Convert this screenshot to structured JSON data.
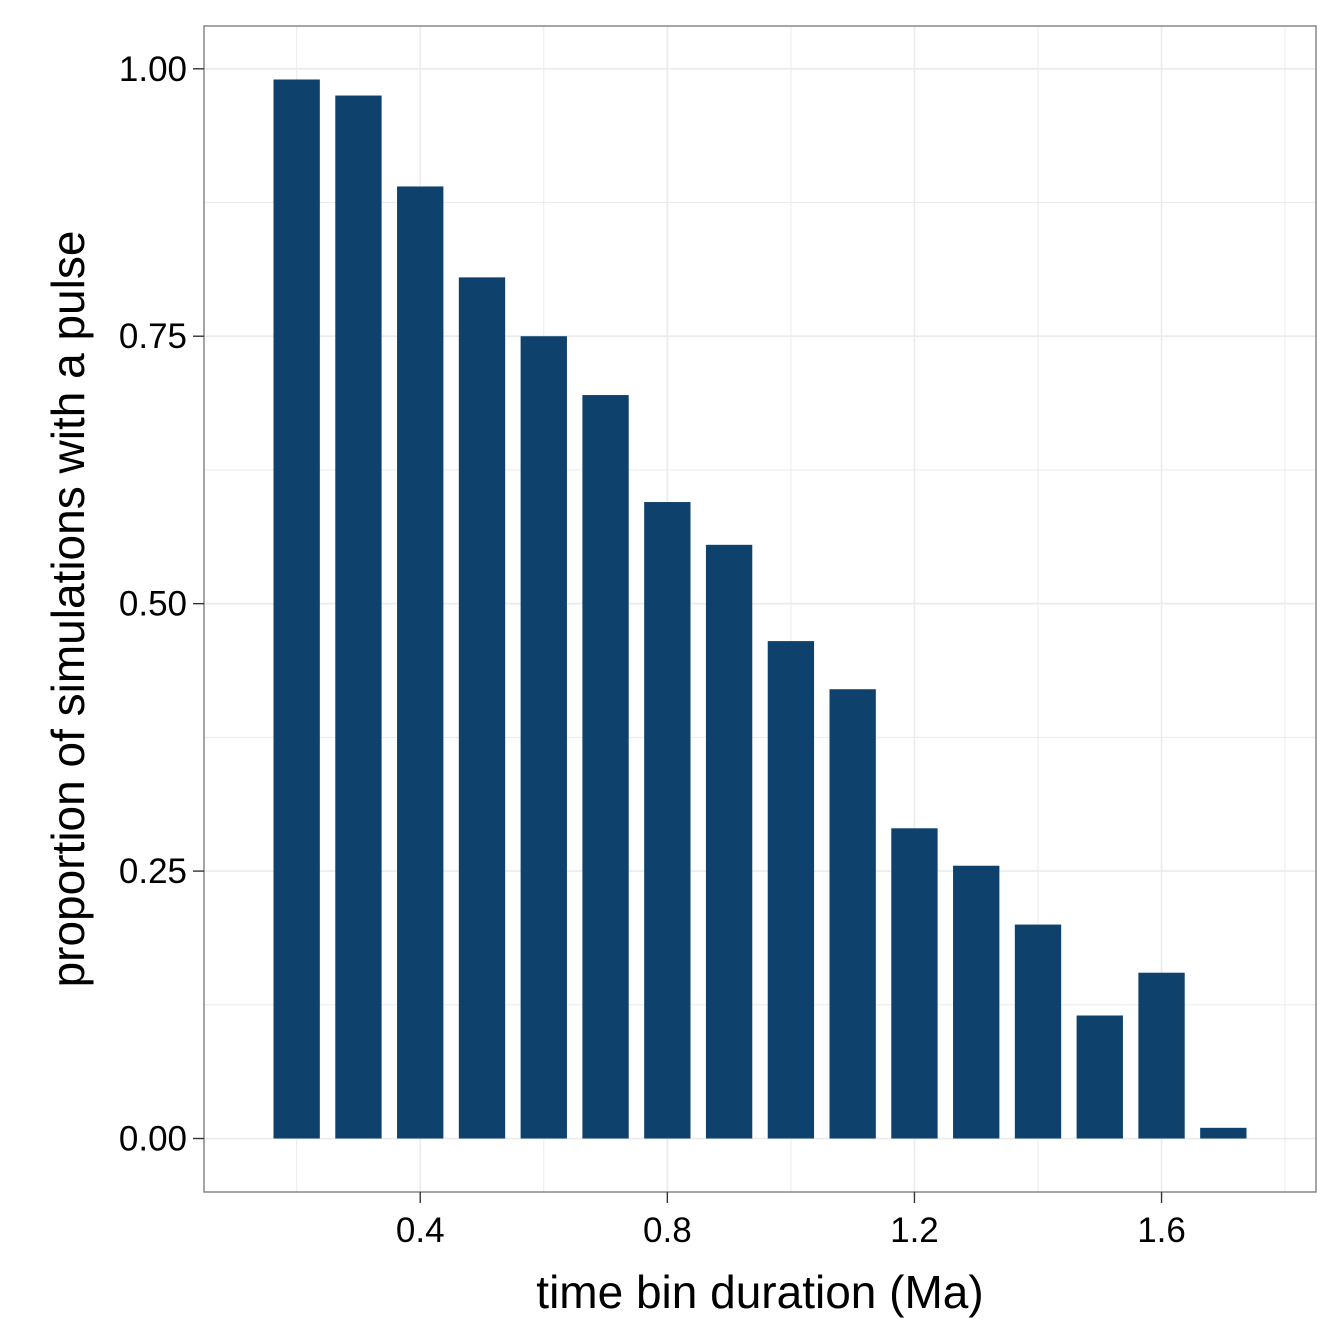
{
  "chart_data": {
    "type": "bar",
    "xlabel": "time bin duration (Ma)",
    "ylabel": "proportion of simulations with a pulse",
    "x": [
      0.2,
      0.3,
      0.4,
      0.5,
      0.6,
      0.7,
      0.8,
      0.9,
      1.0,
      1.1,
      1.2,
      1.3,
      1.4,
      1.5,
      1.6,
      1.7
    ],
    "values": [
      0.99,
      0.975,
      0.89,
      0.805,
      0.75,
      0.695,
      0.595,
      0.555,
      0.465,
      0.42,
      0.29,
      0.255,
      0.2,
      0.115,
      0.155,
      0.01
    ],
    "xlim": [
      0.05,
      1.85
    ],
    "ylim": [
      -0.05,
      1.04
    ],
    "x_ticks": [
      0.4,
      0.8,
      1.2,
      1.6
    ],
    "x_tick_labels": [
      "0.4",
      "0.8",
      "1.2",
      "1.6"
    ],
    "y_ticks": [
      0.0,
      0.25,
      0.5,
      0.75,
      1.0
    ],
    "y_tick_labels": [
      "0.00",
      "0.25",
      "0.50",
      "0.75",
      "1.00"
    ],
    "grid": true,
    "bar_color": "#0e416c",
    "grid_color": "#ebebeb",
    "panel_border_color": "#7f7f7f"
  }
}
